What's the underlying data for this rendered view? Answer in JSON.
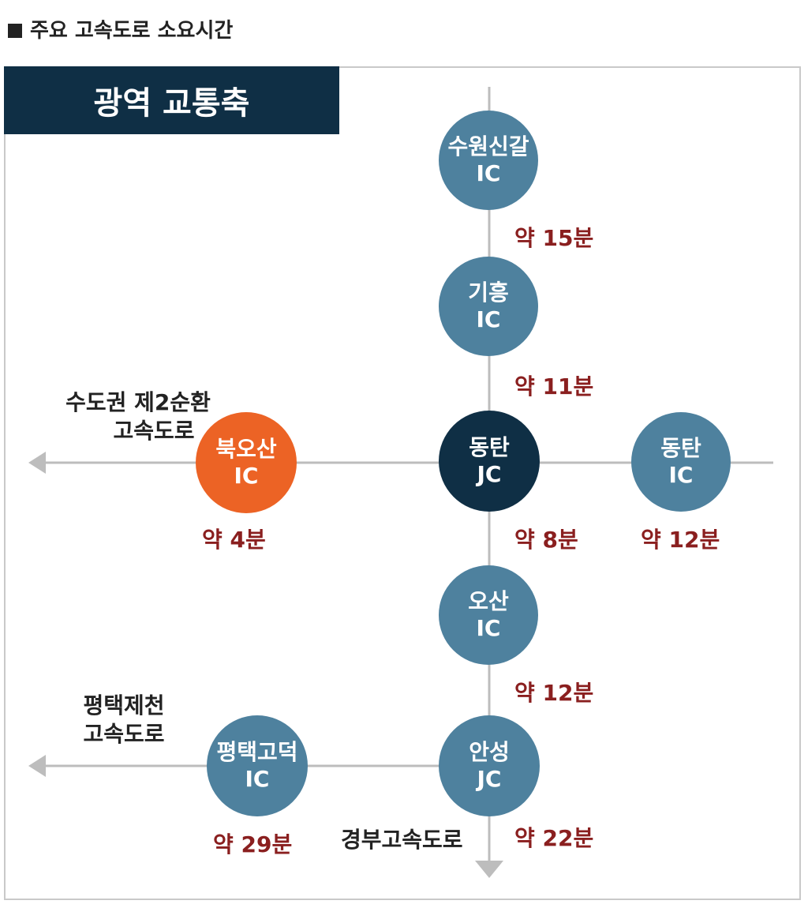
{
  "title": "주요 고속도로 소요시간",
  "banner": "광역 교통축",
  "colors": {
    "node_default": "#4e819e",
    "node_hub": "#0f2f45",
    "node_highlight": "#ec6325",
    "time_text": "#8a1f1f",
    "line": "#bdbdbd"
  },
  "nodes": {
    "suwon": {
      "name": "수원신갈",
      "type": "IC"
    },
    "giheung": {
      "name": "기흥",
      "type": "IC"
    },
    "dongtan_jc": {
      "name": "동탄",
      "type": "JC"
    },
    "dongtan_ic": {
      "name": "동탄",
      "type": "IC"
    },
    "bugosan": {
      "name": "북오산",
      "type": "IC"
    },
    "osan": {
      "name": "오산",
      "type": "IC"
    },
    "anseong": {
      "name": "안성",
      "type": "JC"
    },
    "pyeongtaek": {
      "name": "평택고덕",
      "type": "IC"
    }
  },
  "times": {
    "suwon_giheung": "약 15분",
    "giheung_dongtan": "약 11분",
    "bugosan": "약 4분",
    "dongtan_osan": "약 8분",
    "dongtan_ic": "약 12분",
    "osan_anseong": "약 12분",
    "anseong": "약 22분",
    "pyeongtaek": "약 29분"
  },
  "roads": {
    "capital_line1": "수도권 제2순환",
    "capital_line2": "고속도로",
    "pj_line1": "평택제천",
    "pj_line2": "고속도로",
    "gyeongbu": "경부고속도로"
  }
}
